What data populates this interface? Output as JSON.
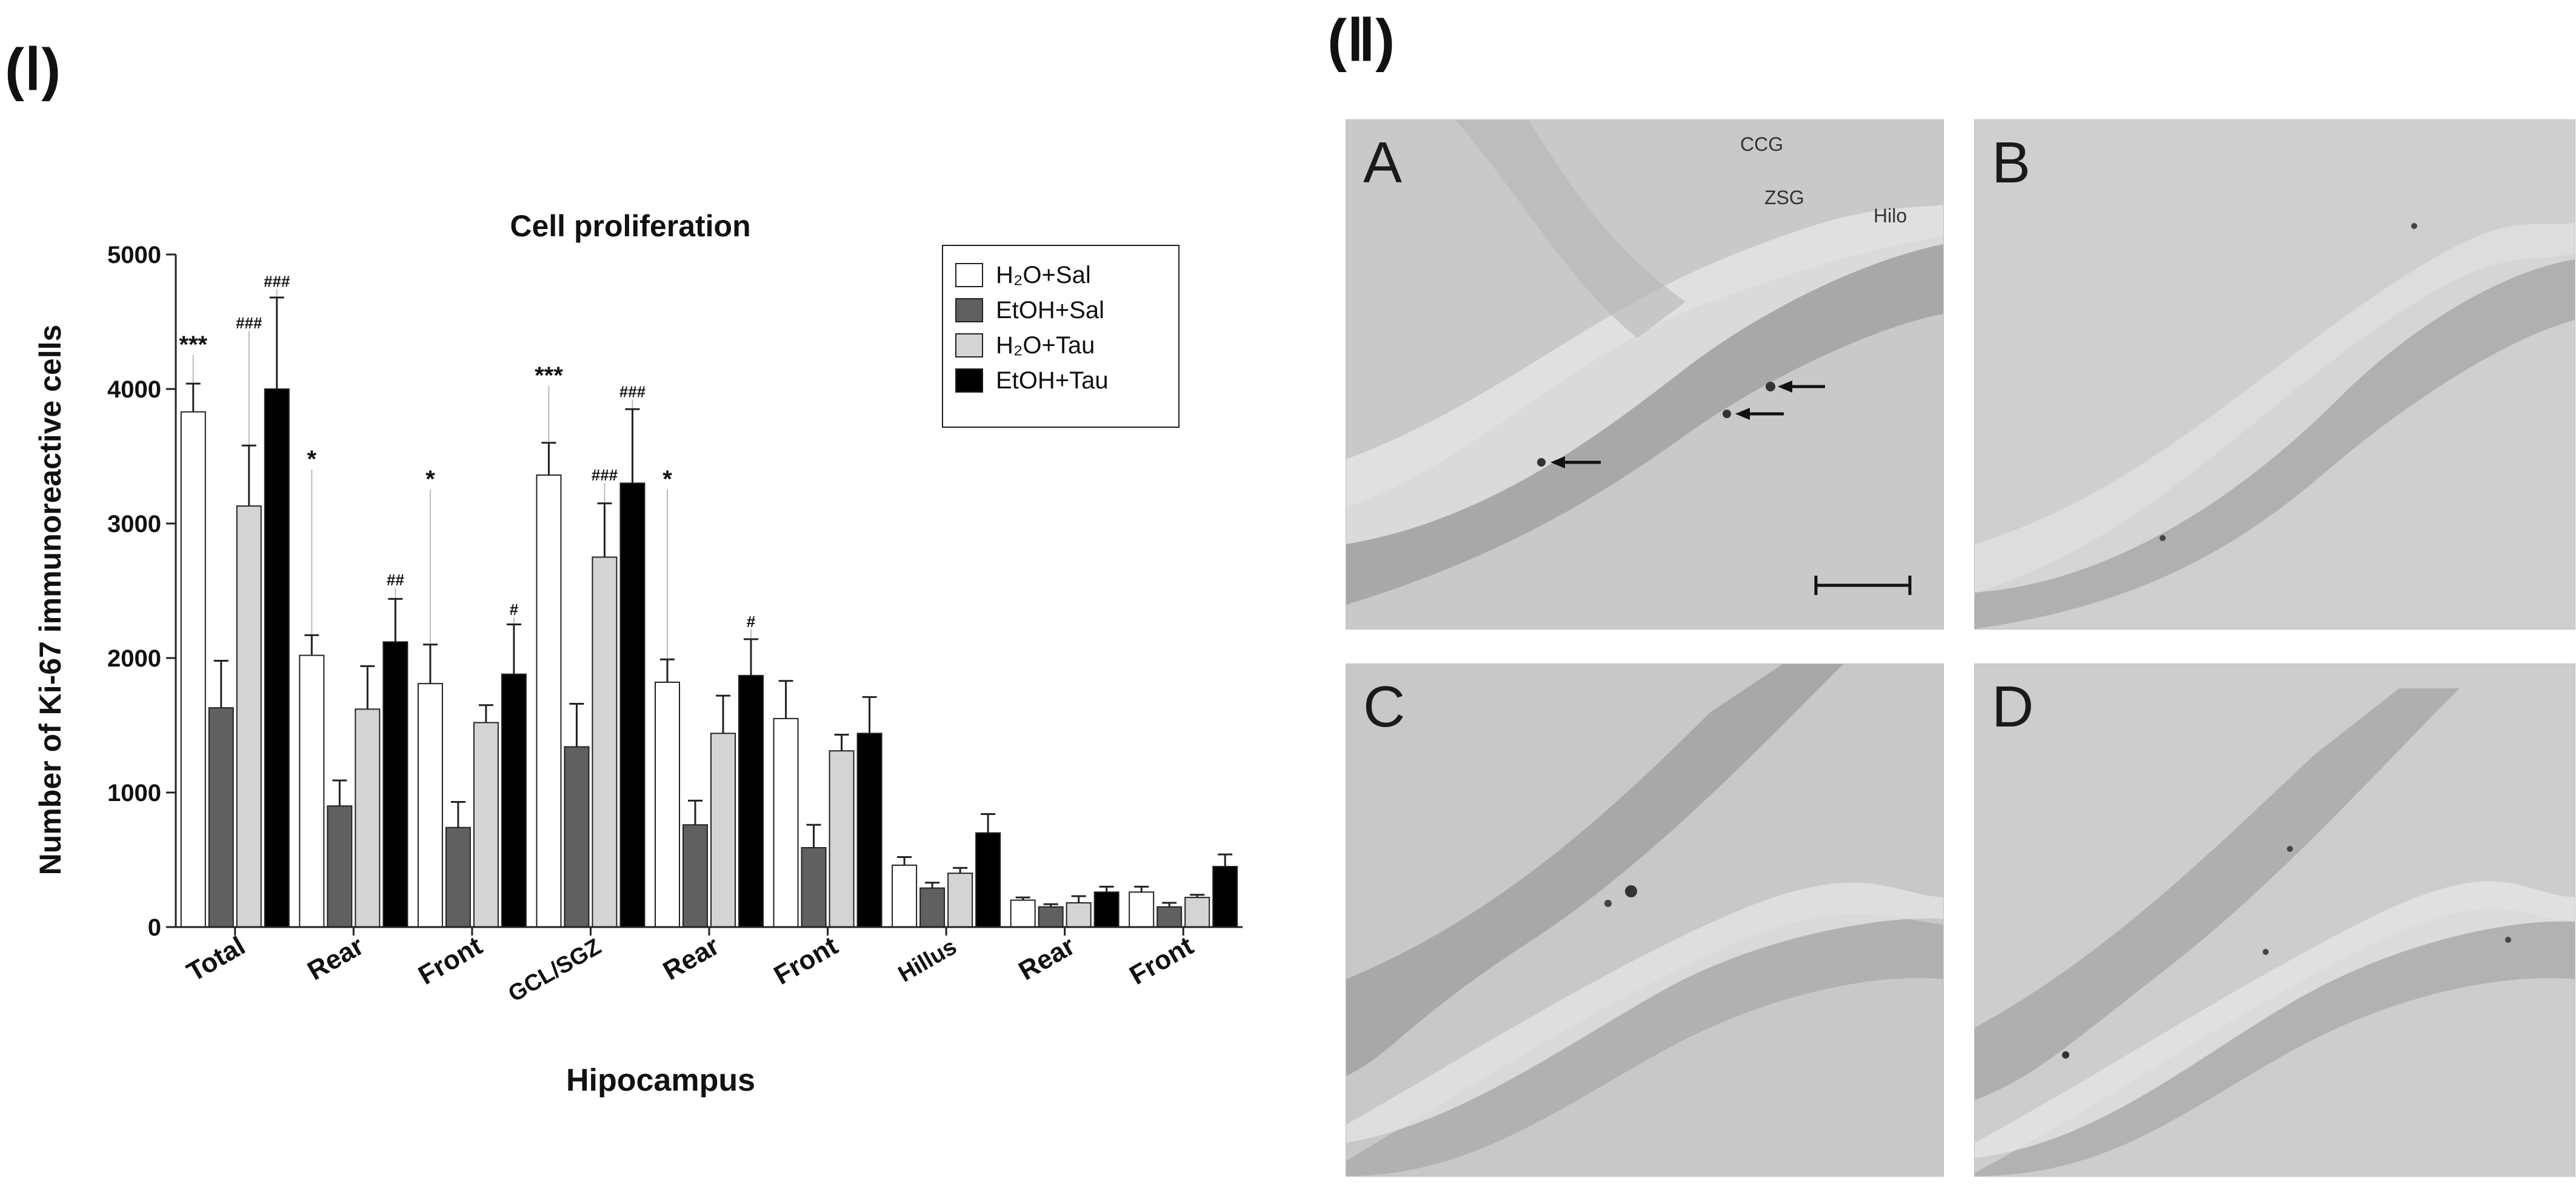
{
  "panels": {
    "left_tag": "(Ⅰ)",
    "right_tag": "(Ⅱ)"
  },
  "chart_data": {
    "type": "bar",
    "title": "Cell proliferation",
    "xlabel": "Hipocampus",
    "ylabel": "Number of Ki-67 immunoreactive cells",
    "ylim": [
      0,
      5000
    ],
    "yticks": [
      0,
      1000,
      2000,
      3000,
      4000,
      5000
    ],
    "grid": false,
    "legend_position": "top-right",
    "categories": [
      "Total",
      "Rear",
      "Front",
      "GCL/SGZ",
      "Rear",
      "Front",
      "Hillus",
      "Rear",
      "Front"
    ],
    "series": [
      {
        "name": "H₂O+Sal",
        "fill": "#ffffff",
        "values": [
          3830,
          2020,
          1810,
          3360,
          1820,
          1550,
          460,
          200,
          260
        ],
        "errors": [
          210,
          150,
          290,
          240,
          170,
          280,
          60,
          20,
          40
        ]
      },
      {
        "name": "EtOH+Sal",
        "fill": "#606060",
        "values": [
          1630,
          900,
          740,
          1340,
          760,
          590,
          290,
          150,
          150
        ],
        "errors": [
          350,
          190,
          190,
          320,
          180,
          170,
          40,
          20,
          30
        ]
      },
      {
        "name": "H₂O+Tau",
        "fill": "#d4d4d4",
        "values": [
          3130,
          1620,
          1520,
          2750,
          1440,
          1310,
          400,
          180,
          220
        ],
        "errors": [
          450,
          320,
          130,
          400,
          280,
          120,
          40,
          50,
          20
        ]
      },
      {
        "name": "EtOH+Tau",
        "fill": "#000000",
        "values": [
          4000,
          2120,
          1880,
          3300,
          1870,
          1440,
          700,
          260,
          450
        ],
        "errors": [
          680,
          320,
          370,
          550,
          270,
          270,
          140,
          40,
          90
        ]
      }
    ],
    "annotations": [
      {
        "text": "***",
        "category": 0,
        "series": 0,
        "y": 4270
      },
      {
        "text": "###",
        "category": 0,
        "series": 2,
        "y": 4450
      },
      {
        "text": "###",
        "category": 0,
        "series": 3,
        "y": 4760
      },
      {
        "text": "*",
        "category": 1,
        "series": 0,
        "y": 3420
      },
      {
        "text": "##",
        "category": 1,
        "series": 3,
        "y": 2540
      },
      {
        "text": "*",
        "category": 2,
        "series": 0,
        "y": 3270
      },
      {
        "text": "#",
        "category": 2,
        "series": 3,
        "y": 2320
      },
      {
        "text": "***",
        "category": 3,
        "series": 0,
        "y": 4040
      },
      {
        "text": "###",
        "category": 3,
        "series": 2,
        "y": 3320
      },
      {
        "text": "###",
        "category": 3,
        "series": 3,
        "y": 3940
      },
      {
        "text": "*",
        "category": 4,
        "series": 0,
        "y": 3270
      },
      {
        "text": "#",
        "category": 4,
        "series": 3,
        "y": 2230
      }
    ]
  },
  "micrographs": [
    {
      "letter": "A",
      "labels": [
        "CCG",
        "ZSG",
        "Hilo"
      ]
    },
    {
      "letter": "B",
      "labels": []
    },
    {
      "letter": "C",
      "labels": []
    },
    {
      "letter": "D",
      "labels": []
    }
  ]
}
